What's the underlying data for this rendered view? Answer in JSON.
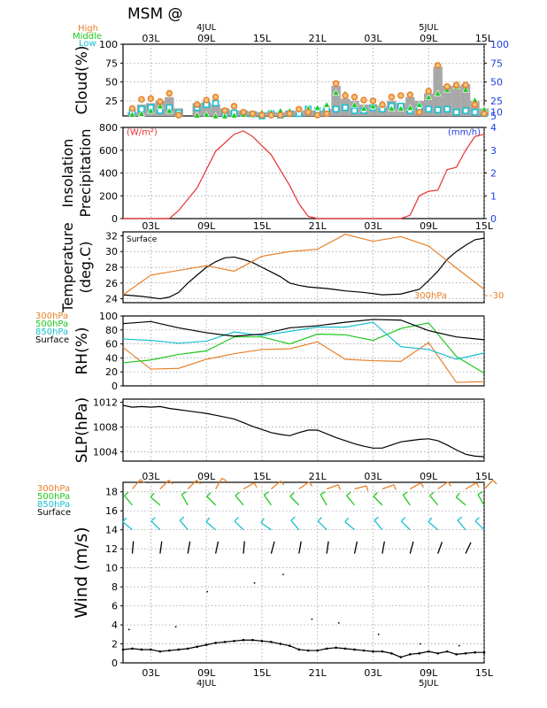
{
  "header": {
    "title": "MSM  @"
  },
  "colors": {
    "high": "#e8802a",
    "middle": "#1ec81e",
    "low": "#18c0d0",
    "black": "#000000",
    "red": "#e83030",
    "blue": "#2040e0",
    "gray": "#a8a8a8",
    "grid": "#909090"
  },
  "time_axis": {
    "top_ticks": [
      "03L",
      "09L",
      "15L",
      "21L",
      "03L",
      "09L",
      "15L"
    ],
    "bottom_ticks": [
      "03L",
      "09L",
      "15L",
      "21L",
      "03L",
      "09L",
      "15L"
    ],
    "date_labels": [
      "4JUL",
      "5JUL"
    ]
  },
  "chart_data": [
    {
      "id": "cloud",
      "type": "bar",
      "ylabel": "Cloud(%)",
      "legend": [
        "High",
        "Middle",
        "Low"
      ],
      "ylim": [
        5,
        100
      ],
      "left_ticks": [
        "100",
        "75",
        "50",
        "25"
      ],
      "right_ticks": [
        "100",
        "75",
        "50",
        "25",
        "10",
        "5"
      ],
      "x_hours": [
        1,
        2,
        3,
        4,
        5,
        6,
        8,
        9,
        10,
        11,
        12,
        13,
        14,
        15,
        16,
        17,
        18,
        19,
        20,
        21,
        22,
        23,
        24,
        25,
        26,
        27,
        28,
        29,
        30,
        31,
        32,
        33,
        34,
        35,
        36,
        37,
        38,
        39
      ],
      "total": [
        10,
        20,
        22,
        25,
        30,
        15,
        22,
        23,
        20,
        15,
        12,
        12,
        11,
        10,
        10,
        10,
        12,
        12,
        13,
        12,
        14,
        45,
        28,
        25,
        20,
        20,
        18,
        25,
        22,
        30,
        25,
        35,
        70,
        45,
        45,
        47,
        25,
        15
      ],
      "series": [
        {
          "name": "High",
          "values": [
            15,
            27,
            28,
            24,
            35,
            6,
            20,
            26,
            30,
            12,
            18,
            10,
            8,
            6,
            6,
            6,
            8,
            14,
            10,
            6,
            8,
            48,
            32,
            30,
            26,
            25,
            20,
            30,
            32,
            33,
            10,
            38,
            72,
            44,
            46,
            46,
            20,
            8
          ]
        },
        {
          "name": "Middle",
          "values": [
            7,
            8,
            12,
            18,
            12,
            8,
            6,
            7,
            5,
            5,
            6,
            7,
            7,
            10,
            10,
            12,
            12,
            14,
            15,
            16,
            20,
            36,
            35,
            20,
            15,
            18,
            20,
            15,
            15,
            16,
            20,
            30,
            35,
            40,
            44,
            40,
            26,
            14
          ]
        },
        {
          "name": "Low",
          "values": [
            10,
            14,
            16,
            12,
            16,
            9,
            16,
            20,
            22,
            8,
            9,
            8,
            7,
            5,
            8,
            6,
            8,
            8,
            14,
            12,
            14,
            14,
            16,
            12,
            12,
            16,
            14,
            18,
            18,
            12,
            16,
            14,
            13,
            14,
            10,
            12,
            10,
            8
          ]
        }
      ]
    },
    {
      "id": "insolation",
      "type": "line",
      "ylabel": "Insolation\nPrecipitation",
      "unit_left": "(W/m²)",
      "unit_right": "(mm/h)",
      "ylim": [
        0,
        800
      ],
      "left_ticks": [
        "800",
        "600",
        "400",
        "200",
        "0"
      ],
      "right_ticks": [
        "4",
        "3",
        "2",
        "1",
        "0"
      ],
      "series": [
        {
          "name": "Insolation",
          "x": [
            0,
            3,
            5,
            6,
            8,
            10,
            12,
            13,
            14,
            16,
            18,
            19,
            20,
            21,
            30,
            31,
            32,
            33,
            34,
            35,
            36,
            37,
            38,
            39
          ],
          "values": [
            0,
            0,
            0,
            70,
            270,
            590,
            740,
            770,
            720,
            560,
            290,
            130,
            20,
            0,
            0,
            30,
            200,
            240,
            250,
            430,
            450,
            600,
            720,
            740
          ]
        }
      ]
    },
    {
      "id": "temperature",
      "type": "line",
      "ylabel": "Temperature\n(deg.C)",
      "ylim": [
        23.5,
        32.5
      ],
      "left_ticks": [
        "32",
        "30",
        "28",
        "26",
        "24"
      ],
      "surface_label": "Surface",
      "upper_label": "300hPa",
      "upper_tick": "-30",
      "series": [
        {
          "name": "Surface",
          "x": [
            0,
            2,
            4,
            5,
            6,
            7,
            8,
            9,
            10,
            11,
            12,
            13,
            14,
            15,
            16,
            17,
            18,
            19,
            20,
            21,
            22,
            24,
            26,
            28,
            30,
            32,
            33,
            34,
            35,
            36,
            37,
            38,
            39
          ],
          "values": [
            24.5,
            24.3,
            24.0,
            24.2,
            24.8,
            26.0,
            27.0,
            28.0,
            28.7,
            29.2,
            29.3,
            29.0,
            28.6,
            28.0,
            27.4,
            26.8,
            26.0,
            25.7,
            25.5,
            25.4,
            25.3,
            25.0,
            24.8,
            24.5,
            24.6,
            25.2,
            26.3,
            27.5,
            29.0,
            30.0,
            30.8,
            31.5,
            31.7
          ]
        },
        {
          "name": "300hPa",
          "x": [
            0,
            3,
            6,
            9,
            12,
            15,
            18,
            21,
            24,
            27,
            30,
            33,
            36,
            39
          ],
          "values": [
            24.5,
            27.0,
            27.6,
            28.2,
            27.5,
            29.4,
            30.0,
            30.3,
            32.2,
            31.3,
            31.9,
            30.7,
            27.9,
            25.2
          ]
        }
      ]
    },
    {
      "id": "rh",
      "type": "line",
      "ylabel": "RH(%)",
      "ylim": [
        0,
        100
      ],
      "left_ticks": [
        "100",
        "80",
        "60",
        "40",
        "20",
        "0"
      ],
      "legend": [
        "300hPa",
        "500hPa",
        "850hPa",
        "Surface"
      ],
      "series": [
        {
          "name": "300hPa",
          "x": [
            0,
            3,
            6,
            9,
            12,
            15,
            18,
            21,
            24,
            27,
            30,
            33,
            36,
            39
          ],
          "values": [
            55,
            24,
            25,
            38,
            46,
            52,
            53,
            63,
            38,
            36,
            35,
            62,
            5,
            6
          ]
        },
        {
          "name": "500hPa",
          "x": [
            0,
            3,
            6,
            9,
            12,
            15,
            18,
            21,
            24,
            27,
            30,
            33,
            36,
            39
          ],
          "values": [
            33,
            37,
            45,
            50,
            70,
            70,
            60,
            74,
            73,
            65,
            82,
            90,
            42,
            18
          ]
        },
        {
          "name": "850hPa",
          "x": [
            0,
            3,
            6,
            9,
            12,
            15,
            18,
            21,
            24,
            27,
            30,
            33,
            36,
            39
          ],
          "values": [
            67,
            65,
            61,
            64,
            77,
            72,
            78,
            84,
            84,
            91,
            56,
            52,
            38,
            47
          ]
        },
        {
          "name": "Surface",
          "x": [
            0,
            3,
            6,
            9,
            12,
            15,
            18,
            21,
            24,
            27,
            30,
            33,
            36,
            39
          ],
          "values": [
            89,
            92,
            83,
            76,
            71,
            74,
            83,
            86,
            91,
            95,
            94,
            79,
            70,
            66
          ]
        }
      ]
    },
    {
      "id": "slp",
      "type": "line",
      "ylabel": "SLP(hPa)",
      "ylim": [
        1002.5,
        1012.5
      ],
      "left_ticks": [
        "1012",
        "1008",
        "1004"
      ],
      "series": [
        {
          "name": "SLP",
          "x": [
            0,
            1,
            2,
            3,
            4,
            5,
            6,
            7,
            8,
            9,
            10,
            11,
            12,
            13,
            14,
            15,
            16,
            17,
            18,
            19,
            20,
            21,
            22,
            23,
            24,
            25,
            26,
            27,
            28,
            29,
            30,
            31,
            32,
            33,
            34,
            35,
            36,
            37,
            38,
            39
          ],
          "values": [
            1011.5,
            1011.2,
            1011.3,
            1011.2,
            1011.3,
            1011.0,
            1010.8,
            1010.6,
            1010.4,
            1010.2,
            1009.9,
            1009.6,
            1009.3,
            1008.7,
            1008.1,
            1007.6,
            1007.1,
            1006.8,
            1006.6,
            1007.1,
            1007.5,
            1007.5,
            1006.9,
            1006.3,
            1005.8,
            1005.3,
            1004.9,
            1004.6,
            1004.6,
            1005.1,
            1005.6,
            1005.8,
            1006.0,
            1006.1,
            1005.8,
            1005.1,
            1004.3,
            1003.6,
            1003.3,
            1003.2
          ]
        }
      ]
    },
    {
      "id": "wind",
      "type": "line",
      "ylabel": "Wind (m/s)",
      "ylim": [
        0,
        19
      ],
      "left_ticks": [
        "18",
        "16",
        "14",
        "12",
        "10",
        "8",
        "6",
        "4",
        "2",
        "0"
      ],
      "legend": [
        "300hPa",
        "500hPa",
        "850hPa",
        "Surface"
      ],
      "series": [
        {
          "name": "Surface",
          "x": [
            0,
            1,
            2,
            3,
            4,
            5,
            6,
            7,
            8,
            9,
            10,
            11,
            12,
            13,
            14,
            15,
            16,
            17,
            18,
            19,
            20,
            21,
            22,
            23,
            24,
            25,
            26,
            27,
            28,
            29,
            30,
            31,
            32,
            33,
            34,
            35,
            36,
            37,
            38,
            39
          ],
          "values": [
            1.4,
            1.5,
            1.4,
            1.4,
            1.2,
            1.3,
            1.4,
            1.5,
            1.7,
            1.9,
            2.1,
            2.2,
            2.3,
            2.4,
            2.4,
            2.3,
            2.2,
            2.0,
            1.8,
            1.4,
            1.3,
            1.3,
            1.5,
            1.6,
            1.5,
            1.4,
            1.3,
            1.2,
            1.2,
            1.0,
            0.6,
            0.9,
            1.0,
            1.2,
            1.0,
            1.2,
            0.9,
            1.0,
            1.1,
            1.1
          ]
        }
      ],
      "scatter_dots": [
        {
          "x": 0.65,
          "y": 3.5
        },
        {
          "x": 5.7,
          "y": 3.8
        },
        {
          "x": 9.1,
          "y": 7.5
        },
        {
          "x": 14.2,
          "y": 8.4
        },
        {
          "x": 17.3,
          "y": 9.3
        },
        {
          "x": 20.4,
          "y": 4.6
        },
        {
          "x": 23.3,
          "y": 4.2
        },
        {
          "x": 27.6,
          "y": 3.0
        },
        {
          "x": 32.1,
          "y": 2.0
        },
        {
          "x": 36.3,
          "y": 1.8
        }
      ],
      "barbs": [
        {
          "level": "300hPa",
          "base": 18.3,
          "hours": [
            1,
            4,
            7,
            10,
            13,
            16,
            19,
            22,
            25,
            28,
            31,
            34,
            37,
            39
          ],
          "angles": [
            40,
            45,
            45,
            30,
            60,
            50,
            55,
            70,
            75,
            70,
            60,
            55,
            60,
            45
          ]
        },
        {
          "level": "500hPa",
          "base": 16.6,
          "hours": [
            1,
            4,
            7,
            10,
            13,
            16,
            19,
            22,
            25,
            28,
            31,
            34,
            37,
            39
          ],
          "angles": [
            -40,
            -50,
            -30,
            -45,
            -40,
            -35,
            -45,
            -30,
            -40,
            -45,
            -35,
            -40,
            -50,
            -30
          ]
        },
        {
          "level": "850hPa",
          "base": 14.0,
          "hours": [
            1,
            4,
            7,
            10,
            13,
            16,
            19,
            22,
            25,
            28,
            31,
            34,
            37,
            39
          ],
          "angles": [
            -50,
            -45,
            -40,
            -50,
            -45,
            -55,
            -40,
            -45,
            -50,
            -40,
            -45,
            -50,
            -40,
            -45
          ]
        },
        {
          "level": "Surface",
          "base": 11.5,
          "hours": [
            1,
            4,
            7,
            10,
            13,
            16,
            19,
            22,
            25,
            28,
            31,
            34,
            37
          ],
          "angles": [
            5,
            8,
            10,
            12,
            5,
            15,
            10,
            8,
            12,
            10,
            15,
            20,
            25
          ]
        }
      ]
    }
  ]
}
